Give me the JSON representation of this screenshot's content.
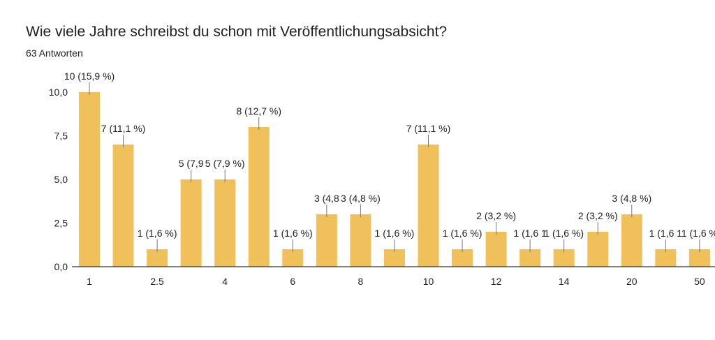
{
  "header": {
    "title": "Wie viele Jahre schreibst du schon mit Veröffentlichungsabsicht?",
    "subtitle": "63 Antworten"
  },
  "colors": {
    "bar": "#f0c05a",
    "axis": "#333333",
    "grid": "#e6e6e6",
    "leader": "#757575"
  },
  "chart_data": {
    "type": "bar",
    "title": "Wie viele Jahre schreibst du schon mit Veröffentlichungsabsicht?",
    "xlabel": "",
    "ylabel": "",
    "ylim": [
      0,
      10
    ],
    "yticks": [
      "0,0",
      "2,5",
      "5,0",
      "7,5",
      "10,0"
    ],
    "grid": false,
    "categories": [
      "1",
      "",
      "2.5",
      "",
      "4",
      "",
      "6",
      "",
      "8",
      "",
      "10",
      "",
      "12",
      "",
      "14",
      "",
      "20",
      "",
      "50"
    ],
    "values": [
      10,
      7,
      1,
      5,
      5,
      8,
      1,
      3,
      3,
      1,
      7,
      1,
      2,
      1,
      1,
      2,
      3,
      1,
      1
    ],
    "data_labels": [
      "10 (15,9 %)",
      "7 (11,1 %)",
      "1 (1,6 %)",
      "5 (7,9",
      "5 (7,9 %)",
      "8 (12,7 %)",
      "1 (1,6 %)",
      "3 (4,8",
      "3 (4,8 %)",
      "1 (1,6 %)",
      "7 (11,1 %)",
      "1 (1,6 %)",
      "2 (3,2 %)",
      "1 (1,6 1",
      "1 (1,6 %)",
      "2 (3,2 %)",
      "3 (4,8 %)",
      "1 (1,6 1",
      "1 (1,6 %"
    ]
  }
}
